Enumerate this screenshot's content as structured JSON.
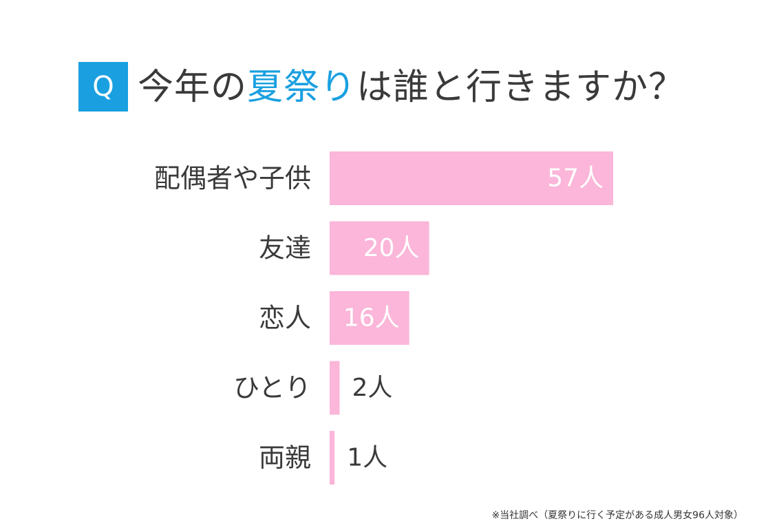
{
  "question": {
    "badge": "Q",
    "prefix": "今年の",
    "highlight": "夏祭り",
    "suffix": "は誰と行きますか？"
  },
  "footnote": "※当社調べ（夏祭りに行く予定がある成人男女96人対象）",
  "colors": {
    "bar": "#fbb6d9",
    "accent": "#1aa0e0",
    "text": "#3a3a3a",
    "label_inside": "#ffffff"
  },
  "chart_data": {
    "type": "bar",
    "orientation": "horizontal",
    "categories": [
      "配偶者や子供",
      "友達",
      "恋人",
      "ひとり",
      "両親"
    ],
    "values": [
      57,
      20,
      16,
      2,
      1
    ],
    "data_labels": [
      "57人",
      "20人",
      "16人",
      "2人",
      "1人"
    ],
    "unit": "人",
    "xlim": [
      0,
      57
    ],
    "grid": false,
    "legend": "none"
  }
}
